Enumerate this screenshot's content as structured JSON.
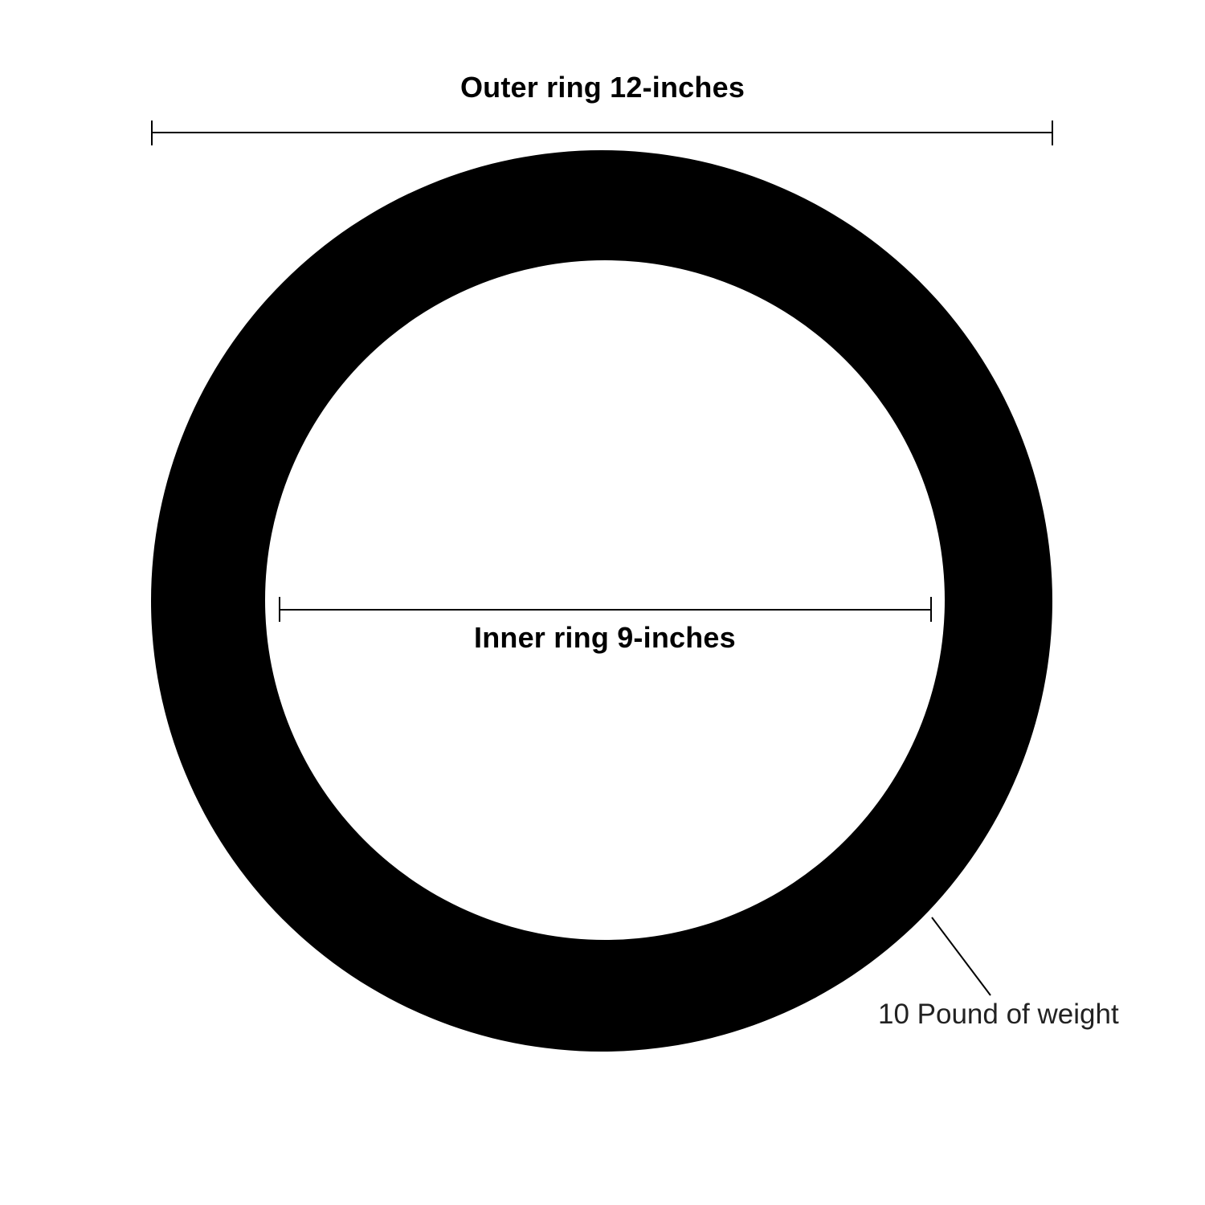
{
  "labels": {
    "outer_ring": "Outer ring 12-inches",
    "inner_ring": "Inner ring 9-inches",
    "weight": "10 Pound of weight"
  },
  "colors": {
    "ring": "#000000",
    "background": "#ffffff",
    "line": "#000000"
  }
}
